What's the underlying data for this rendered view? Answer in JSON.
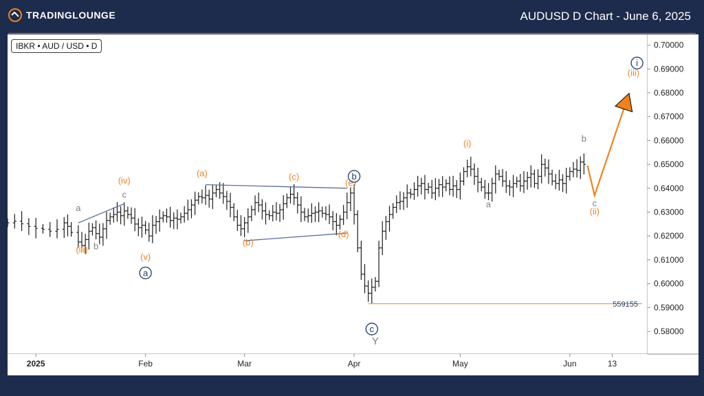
{
  "header": {
    "title": "AUDUSD D Chart - June 6, 2025",
    "logo_text": "TRADINGLOUNGE"
  },
  "symbol_label": "IBKR • AUD / USD • D",
  "colors": {
    "background": "#1d2b4c",
    "plot_bg": "#ffffff",
    "candles": "#1a1a1a",
    "orange": "#f0821e",
    "navy": "#1f3a66",
    "gray": "#7f7f7f",
    "trendline": "#5a6f9a"
  },
  "chart_data": {
    "type": "ohlc",
    "ylim": [
      0.5705,
      0.7045
    ],
    "y_ticks": [
      "0.70000",
      "0.69000",
      "0.68000",
      "0.67000",
      "0.66000",
      "0.65000",
      "0.64000",
      "0.63000",
      "0.62000",
      "0.61000",
      "0.60000",
      "0.59000",
      "0.58000"
    ],
    "x_labels": [
      {
        "text": "2025",
        "bold": true,
        "day": 0
      },
      {
        "text": "Feb",
        "bold": false,
        "day": 31
      },
      {
        "text": "Mar",
        "bold": false,
        "day": 59
      },
      {
        "text": "Apr",
        "bold": false,
        "day": 90
      },
      {
        "text": "May",
        "bold": false,
        "day": 120
      },
      {
        "text": "Jun",
        "bold": false,
        "day": 151
      },
      {
        "text": "13",
        "bold": false,
        "day": 163
      }
    ],
    "x_range": [
      -8,
      173
    ],
    "closes": [
      [
        -8,
        0.6255
      ],
      [
        -6,
        0.6262
      ],
      [
        -4,
        0.6251
      ],
      [
        -2,
        0.624
      ],
      [
        0,
        0.6232
      ],
      [
        2,
        0.6228
      ],
      [
        4,
        0.622
      ],
      [
        6,
        0.6228
      ],
      [
        8,
        0.6255
      ],
      [
        9,
        0.624
      ],
      [
        10,
        0.6215
      ],
      [
        12,
        0.6175
      ],
      [
        13,
        0.616
      ],
      [
        14,
        0.6185
      ],
      [
        15,
        0.622
      ],
      [
        16,
        0.6235
      ],
      [
        17,
        0.621
      ],
      [
        18,
        0.6195
      ],
      [
        19,
        0.623
      ],
      [
        20,
        0.6265
      ],
      [
        21,
        0.628
      ],
      [
        22,
        0.629
      ],
      [
        23,
        0.63
      ],
      [
        24,
        0.6285
      ],
      [
        25,
        0.6305
      ],
      [
        26,
        0.629
      ],
      [
        27,
        0.6275
      ],
      [
        28,
        0.625
      ],
      [
        29,
        0.6235
      ],
      [
        30,
        0.6245
      ],
      [
        31,
        0.6225
      ],
      [
        32,
        0.62
      ],
      [
        33,
        0.6245
      ],
      [
        34,
        0.626
      ],
      [
        35,
        0.6275
      ],
      [
        36,
        0.6285
      ],
      [
        37,
        0.628
      ],
      [
        38,
        0.6265
      ],
      [
        39,
        0.6275
      ],
      [
        40,
        0.627
      ],
      [
        41,
        0.628
      ],
      [
        42,
        0.6295
      ],
      [
        43,
        0.631
      ],
      [
        44,
        0.633
      ],
      [
        45,
        0.635
      ],
      [
        46,
        0.6365
      ],
      [
        47,
        0.636
      ],
      [
        48,
        0.637
      ],
      [
        49,
        0.6355
      ],
      [
        50,
        0.638
      ],
      [
        51,
        0.6395
      ],
      [
        52,
        0.638
      ],
      [
        53,
        0.6365
      ],
      [
        54,
        0.6345
      ],
      [
        55,
        0.632
      ],
      [
        56,
        0.628
      ],
      [
        57,
        0.6245
      ],
      [
        58,
        0.623
      ],
      [
        59,
        0.6255
      ],
      [
        60,
        0.628
      ],
      [
        61,
        0.631
      ],
      [
        62,
        0.634
      ],
      [
        63,
        0.633
      ],
      [
        64,
        0.6305
      ],
      [
        65,
        0.629
      ],
      [
        66,
        0.6285
      ],
      [
        67,
        0.63
      ],
      [
        68,
        0.6295
      ],
      [
        69,
        0.631
      ],
      [
        70,
        0.6335
      ],
      [
        71,
        0.636
      ],
      [
        72,
        0.6375
      ],
      [
        73,
        0.636
      ],
      [
        74,
        0.633
      ],
      [
        75,
        0.63
      ],
      [
        76,
        0.628
      ],
      [
        77,
        0.6285
      ],
      [
        78,
        0.6295
      ],
      [
        79,
        0.63
      ],
      [
        80,
        0.6305
      ],
      [
        81,
        0.6295
      ],
      [
        82,
        0.629
      ],
      [
        83,
        0.628
      ],
      [
        84,
        0.626
      ],
      [
        85,
        0.6245
      ],
      [
        86,
        0.627
      ],
      [
        87,
        0.63
      ],
      [
        88,
        0.634
      ],
      [
        89,
        0.638
      ],
      [
        90,
        0.629
      ],
      [
        91,
        0.615
      ],
      [
        92,
        0.604
      ],
      [
        93,
        0.599
      ],
      [
        94,
        0.596
      ],
      [
        95,
        0.5985
      ],
      [
        96,
        0.601
      ],
      [
        97,
        0.615
      ],
      [
        98,
        0.622
      ],
      [
        99,
        0.626
      ],
      [
        100,
        0.629
      ],
      [
        101,
        0.632
      ],
      [
        102,
        0.634
      ],
      [
        103,
        0.6345
      ],
      [
        104,
        0.636
      ],
      [
        105,
        0.638
      ],
      [
        106,
        0.6375
      ],
      [
        107,
        0.6395
      ],
      [
        108,
        0.641
      ],
      [
        109,
        0.642
      ],
      [
        110,
        0.6395
      ],
      [
        111,
        0.6405
      ],
      [
        112,
        0.638
      ],
      [
        113,
        0.64
      ],
      [
        114,
        0.6415
      ],
      [
        115,
        0.6405
      ],
      [
        116,
        0.642
      ],
      [
        117,
        0.6395
      ],
      [
        118,
        0.641
      ],
      [
        119,
        0.6395
      ],
      [
        120,
        0.643
      ],
      [
        121,
        0.647
      ],
      [
        122,
        0.649
      ],
      [
        123,
        0.648
      ],
      [
        124,
        0.645
      ],
      [
        125,
        0.6425
      ],
      [
        126,
        0.6405
      ],
      [
        127,
        0.638
      ],
      [
        128,
        0.638
      ],
      [
        129,
        0.642
      ],
      [
        130,
        0.646
      ],
      [
        131,
        0.645
      ],
      [
        132,
        0.643
      ],
      [
        133,
        0.641
      ],
      [
        134,
        0.6405
      ],
      [
        135,
        0.642
      ],
      [
        136,
        0.643
      ],
      [
        137,
        0.641
      ],
      [
        138,
        0.643
      ],
      [
        139,
        0.6445
      ],
      [
        140,
        0.646
      ],
      [
        141,
        0.642
      ],
      [
        142,
        0.645
      ],
      [
        143,
        0.65
      ],
      [
        144,
        0.6485
      ],
      [
        145,
        0.646
      ],
      [
        146,
        0.643
      ],
      [
        147,
        0.642
      ],
      [
        148,
        0.6435
      ],
      [
        149,
        0.642
      ],
      [
        150,
        0.645
      ],
      [
        151,
        0.647
      ],
      [
        152,
        0.648
      ],
      [
        153,
        0.6475
      ],
      [
        154,
        0.651
      ],
      [
        155,
        0.65
      ]
    ],
    "support_line": {
      "value": "559155",
      "price": 0.5916,
      "from_day": 94
    },
    "trendlines": [
      {
        "from": [
          12,
          0.6255
        ],
        "to": [
          25,
          0.6335
        ]
      },
      {
        "from": [
          48,
          0.6415
        ],
        "to": [
          88,
          0.64
        ]
      },
      {
        "from": [
          59,
          0.618
        ],
        "to": [
          88,
          0.6212
        ]
      }
    ],
    "projection": [
      [
        156,
        0.6495
      ],
      [
        158,
        0.637
      ],
      [
        167,
        0.6765
      ]
    ],
    "wave_labels": [
      {
        "text": "(iii)",
        "day": 13,
        "price": 0.613,
        "color": "orange"
      },
      {
        "text": "a",
        "day": 12,
        "price": 0.6305,
        "color": "gray"
      },
      {
        "text": "b",
        "day": 17,
        "price": 0.6145,
        "color": "gray"
      },
      {
        "text": "c",
        "day": 25,
        "price": 0.636,
        "color": "gray"
      },
      {
        "text": "(iv)",
        "day": 25,
        "price": 0.642,
        "color": "orange"
      },
      {
        "text": "(v)",
        "day": 31,
        "price": 0.61,
        "color": "orange"
      },
      {
        "text": "(a)",
        "day": 47,
        "price": 0.645,
        "color": "orange"
      },
      {
        "text": "(b)",
        "day": 60,
        "price": 0.616,
        "color": "orange"
      },
      {
        "text": "(c)",
        "day": 73,
        "price": 0.6435,
        "color": "orange"
      },
      {
        "text": "(d)",
        "day": 87,
        "price": 0.6195,
        "color": "orange"
      },
      {
        "text": "(e)",
        "day": 89,
        "price": 0.641,
        "color": "orange"
      },
      {
        "text": "(i)",
        "day": 122,
        "price": 0.6575,
        "color": "orange"
      },
      {
        "text": "a",
        "day": 128,
        "price": 0.632,
        "color": "gray"
      },
      {
        "text": "b",
        "day": 155,
        "price": 0.6595,
        "color": "gray"
      },
      {
        "text": "c",
        "day": 158,
        "price": 0.6325,
        "color": "gray"
      },
      {
        "text": "(ii)",
        "day": 158,
        "price": 0.629,
        "color": "orange"
      },
      {
        "text": "(iii)",
        "day": 169,
        "price": 0.687,
        "color": "orange"
      },
      {
        "text": "Y",
        "day": 96,
        "price": 0.5745,
        "color": "gray"
      }
    ],
    "circled_labels": [
      {
        "text": "a",
        "day": 31,
        "price": 0.6045
      },
      {
        "text": "b",
        "day": 90,
        "price": 0.645
      },
      {
        "text": "c",
        "day": 95,
        "price": 0.581
      },
      {
        "text": "i",
        "day": 170,
        "price": 0.6925
      }
    ]
  }
}
